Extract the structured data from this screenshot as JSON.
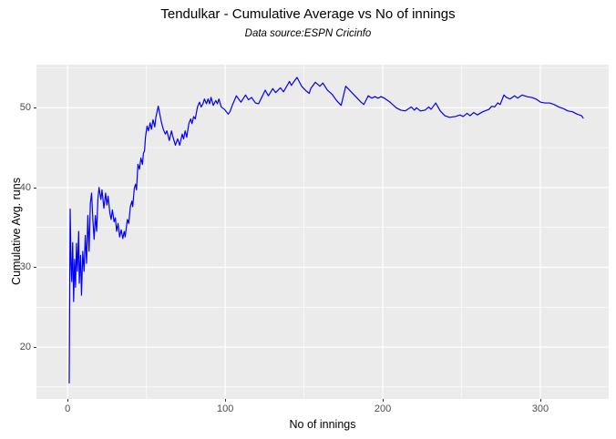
{
  "chart_data": {
    "type": "line",
    "title": "Tendulkar - Cumulative Average vs No of innings",
    "subtitle": "Data source:ESPN Cricinfo",
    "xlabel": "No of innings",
    "ylabel": "Cumulative Avg. runs",
    "x_ticks": [
      0,
      100,
      200,
      300
    ],
    "y_ticks": [
      20,
      30,
      40,
      50
    ],
    "x_minor_ticks": [
      50,
      150,
      250,
      350
    ],
    "y_minor_ticks": [
      15,
      25,
      35,
      45,
      55
    ],
    "x_domain": [
      -19.8,
      343.4
    ],
    "y_domain": [
      13.5,
      55.4
    ],
    "grid": true,
    "legend_position": "none",
    "colors": {
      "line": "#0000FF",
      "panel_background": "#EBEBEB",
      "gridline": "#FFFFFF",
      "tick_label": "#4D4D4D",
      "tick_mark": "#333333",
      "text": "#000000",
      "outer_background": "#FFFFFF"
    },
    "series": [
      {
        "name": "cumulative-average",
        "points": [
          [
            1,
            15.5
          ],
          [
            1.6,
            37.3
          ],
          [
            2.2,
            30.1
          ],
          [
            2.6,
            28.2
          ],
          [
            3.2,
            33.1
          ],
          [
            3.8,
            25.7
          ],
          [
            4.4,
            31.0
          ],
          [
            5,
            27.5
          ],
          [
            5.6,
            33.0
          ],
          [
            6.2,
            29.5
          ],
          [
            7,
            34.5
          ],
          [
            7.4,
            28.0
          ],
          [
            8.2,
            31.5
          ],
          [
            8.8,
            26.5
          ],
          [
            9.6,
            32.0
          ],
          [
            10.4,
            29.5
          ],
          [
            11.2,
            34.0
          ],
          [
            12,
            30.5
          ],
          [
            12.8,
            36.5
          ],
          [
            13.6,
            32.0
          ],
          [
            14.4,
            38.0
          ],
          [
            15.2,
            39.3
          ],
          [
            16,
            36.0
          ],
          [
            16.8,
            33.5
          ],
          [
            17.6,
            36.5
          ],
          [
            18.4,
            34.5
          ],
          [
            19.2,
            38.5
          ],
          [
            19.9,
            40.0
          ],
          [
            21.1,
            38.5
          ],
          [
            21.8,
            39.7
          ],
          [
            23,
            37.4
          ],
          [
            24.1,
            39.3
          ],
          [
            24.9,
            37.8
          ],
          [
            25.7,
            38.9
          ],
          [
            26.8,
            36.8
          ],
          [
            27.6,
            36.0
          ],
          [
            28.4,
            37.2
          ],
          [
            29.5,
            35.7
          ],
          [
            30.3,
            36.2
          ],
          [
            31.1,
            34.5
          ],
          [
            32,
            35.5
          ],
          [
            33,
            33.8
          ],
          [
            34,
            34.7
          ],
          [
            35,
            33.6
          ],
          [
            35.9,
            34.5
          ],
          [
            36.5,
            33.8
          ],
          [
            37.9,
            36.0
          ],
          [
            38.8,
            35.5
          ],
          [
            39.8,
            37.6
          ],
          [
            40.8,
            38.3
          ],
          [
            41.3,
            37.6
          ],
          [
            42.3,
            39.9
          ],
          [
            43.1,
            40.4
          ],
          [
            43.7,
            39.7
          ],
          [
            44.6,
            42.9
          ],
          [
            45.6,
            42.3
          ],
          [
            46.5,
            43.7
          ],
          [
            47.5,
            42.9
          ],
          [
            48.1,
            44.3
          ],
          [
            48.8,
            44.6
          ],
          [
            49.4,
            46.3
          ],
          [
            50.4,
            47.7
          ],
          [
            51.3,
            47.1
          ],
          [
            52.3,
            48.1
          ],
          [
            53.2,
            47.3
          ],
          [
            54.2,
            48.5
          ],
          [
            55.3,
            47.6
          ],
          [
            56,
            48.8
          ],
          [
            57.5,
            50.2
          ],
          [
            58.8,
            48.9
          ],
          [
            59.5,
            48.2
          ],
          [
            60.7,
            47.3
          ],
          [
            62,
            46.7
          ],
          [
            63,
            47.1
          ],
          [
            64.5,
            45.9
          ],
          [
            65.9,
            47.1
          ],
          [
            66.9,
            46.3
          ],
          [
            68.4,
            45.3
          ],
          [
            69.8,
            46.1
          ],
          [
            71.1,
            45.3
          ],
          [
            72.7,
            46.7
          ],
          [
            73.6,
            46.1
          ],
          [
            74.6,
            47.1
          ],
          [
            75.6,
            46.3
          ],
          [
            76.9,
            48.0
          ],
          [
            78.1,
            48.6
          ],
          [
            78.9,
            48.0
          ],
          [
            80,
            48.9
          ],
          [
            81,
            48.6
          ],
          [
            82.4,
            50.1
          ],
          [
            83.7,
            50.7
          ],
          [
            84.7,
            50.1
          ],
          [
            85.9,
            50.5
          ],
          [
            86.8,
            51.1
          ],
          [
            88.1,
            50.5
          ],
          [
            89.1,
            51.1
          ],
          [
            90.1,
            50.5
          ],
          [
            91,
            51.3
          ],
          [
            92.4,
            50.3
          ],
          [
            94,
            50.9
          ],
          [
            95,
            50.5
          ],
          [
            96,
            51.1
          ],
          [
            97.5,
            50.1
          ],
          [
            99.5,
            49.8
          ],
          [
            100.3,
            49.6
          ],
          [
            101.9,
            49.2
          ],
          [
            103,
            49.5
          ],
          [
            104.5,
            50.3
          ],
          [
            107.1,
            51.5
          ],
          [
            108.5,
            51.1
          ],
          [
            110,
            50.7
          ],
          [
            112.9,
            51.6
          ],
          [
            114.8,
            51.0
          ],
          [
            116.7,
            51.3
          ],
          [
            119.2,
            50.6
          ],
          [
            121.2,
            50.5
          ],
          [
            125.4,
            52.2
          ],
          [
            127.4,
            51.5
          ],
          [
            130.2,
            52.4
          ],
          [
            132,
            51.9
          ],
          [
            135,
            52.5
          ],
          [
            137,
            52.0
          ],
          [
            140.8,
            53.3
          ],
          [
            142,
            52.8
          ],
          [
            143,
            53.1
          ],
          [
            145.6,
            53.8
          ],
          [
            148.5,
            52.7
          ],
          [
            151.4,
            52.1
          ],
          [
            153.3,
            51.8
          ],
          [
            154.3,
            52.4
          ],
          [
            157.2,
            53.2
          ],
          [
            160.1,
            52.7
          ],
          [
            162,
            53.1
          ],
          [
            164.9,
            52.2
          ],
          [
            167.8,
            51.7
          ],
          [
            170.7,
            50.9
          ],
          [
            173.6,
            50.3
          ],
          [
            176.5,
            52.7
          ],
          [
            180.4,
            51.9
          ],
          [
            183.3,
            51.3
          ],
          [
            186.2,
            50.7
          ],
          [
            188,
            50.4
          ],
          [
            190.8,
            51.5
          ],
          [
            193,
            51.2
          ],
          [
            195,
            51.4
          ],
          [
            197,
            51.2
          ],
          [
            199,
            51.4
          ],
          [
            201,
            51.2
          ],
          [
            204.6,
            50.7
          ],
          [
            208.5,
            50.0
          ],
          [
            211.4,
            49.7
          ],
          [
            214.3,
            49.6
          ],
          [
            218.1,
            50.1
          ],
          [
            220.1,
            49.7
          ],
          [
            221.4,
            50.0
          ],
          [
            223.9,
            49.6
          ],
          [
            226.8,
            49.7
          ],
          [
            229.2,
            50.1
          ],
          [
            230.7,
            49.8
          ],
          [
            233.6,
            50.6
          ],
          [
            236.5,
            49.6
          ],
          [
            239.4,
            49.0
          ],
          [
            242.3,
            48.8
          ],
          [
            246.1,
            48.9
          ],
          [
            249,
            49.1
          ],
          [
            251,
            48.9
          ],
          [
            253.5,
            49.3
          ],
          [
            255.4,
            49.0
          ],
          [
            257.7,
            49.4
          ],
          [
            260,
            49.1
          ],
          [
            263.5,
            49.5
          ],
          [
            267.4,
            49.8
          ],
          [
            269.2,
            50.2
          ],
          [
            271,
            50.1
          ],
          [
            273,
            50.6
          ],
          [
            274.5,
            50.4
          ],
          [
            276.9,
            51.6
          ],
          [
            278.5,
            51.3
          ],
          [
            280.8,
            51.1
          ],
          [
            283.7,
            51.5
          ],
          [
            285.6,
            51.2
          ],
          [
            288.5,
            51.6
          ],
          [
            291.4,
            51.4
          ],
          [
            294.3,
            51.3
          ],
          [
            297.2,
            51.1
          ],
          [
            300.1,
            50.7
          ],
          [
            303,
            50.6
          ],
          [
            305.9,
            50.6
          ],
          [
            308.8,
            50.4
          ],
          [
            311.7,
            50.1
          ],
          [
            314.6,
            49.9
          ],
          [
            317.5,
            49.6
          ],
          [
            320.4,
            49.5
          ],
          [
            323.3,
            49.2
          ],
          [
            326.2,
            49.0
          ],
          [
            327.2,
            48.7
          ]
        ]
      }
    ]
  }
}
